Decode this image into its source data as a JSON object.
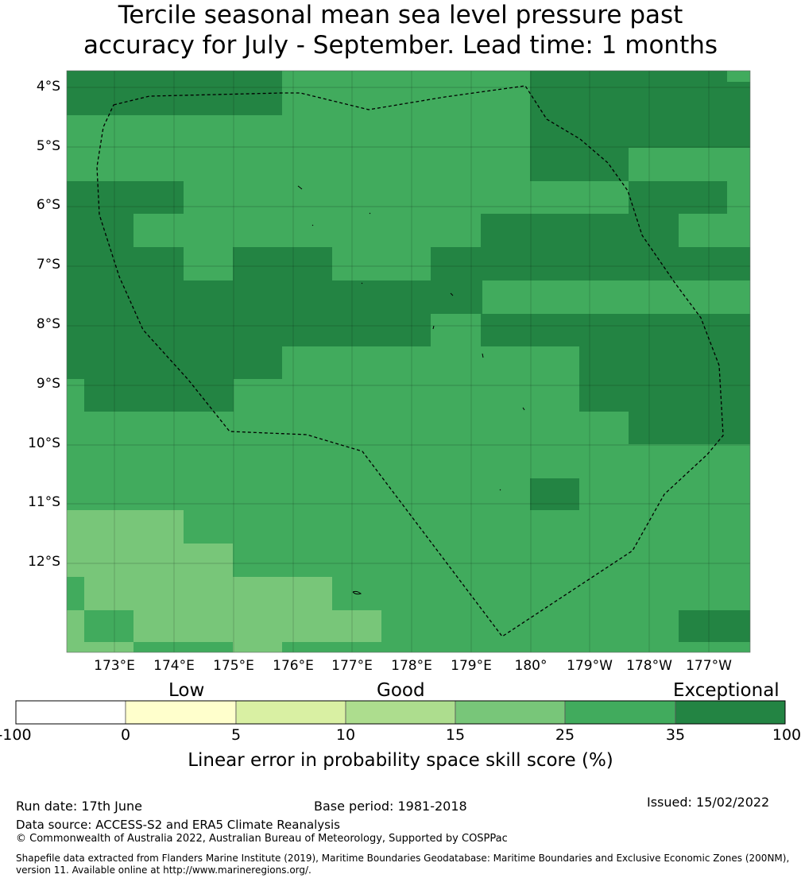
{
  "title_line1": "Tercile seasonal mean sea level pressure past",
  "title_line2": "accuracy for July - September. Lead time: 1 months",
  "lat_labels": [
    "4°S",
    "5°S",
    "6°S",
    "7°S",
    "8°S",
    "9°S",
    "10°S",
    "11°S",
    "12°S"
  ],
  "lon_labels": [
    "173°E",
    "174°E",
    "175°E",
    "176°E",
    "177°E",
    "178°E",
    "179°E",
    "180°",
    "179°W",
    "178°W",
    "177°W"
  ],
  "colors": {
    "exceptional": "#238443",
    "c25_35": "#41ab5d",
    "c15_25": "#78c679",
    "c10_15": "#addd8e",
    "c5_10": "#d9f0a3",
    "c0_5": "#ffffcc",
    "below0": "#ffffff"
  },
  "colorbar": {
    "categories": [
      "Low",
      "Good",
      "Exceptional"
    ],
    "ticks": [
      "-100",
      "0",
      "5",
      "10",
      "15",
      "25",
      "35",
      "100"
    ],
    "label": "Linear error in probability space skill score (%)"
  },
  "footer": {
    "run_date": "Run date: 17th June",
    "base_period": "Base period: 1981-2018",
    "issued": "Issued: 15/02/2022",
    "data_source": "Data source: ACCESS-S2 and ERA5 Climate Reanalysis",
    "copyright": "© Commonwealth of Australia 2022, Australian Bureau of Meteorology, Supported by COSPPac",
    "shapefile": "Shapefile data extracted from Flanders Marine Institute (2019), Maritime Boundaries Geodatabase: Maritime Boundaries and Exclusive Economic Zones (200NM), version 11. Available online at http://www.marineregions.org/."
  }
}
